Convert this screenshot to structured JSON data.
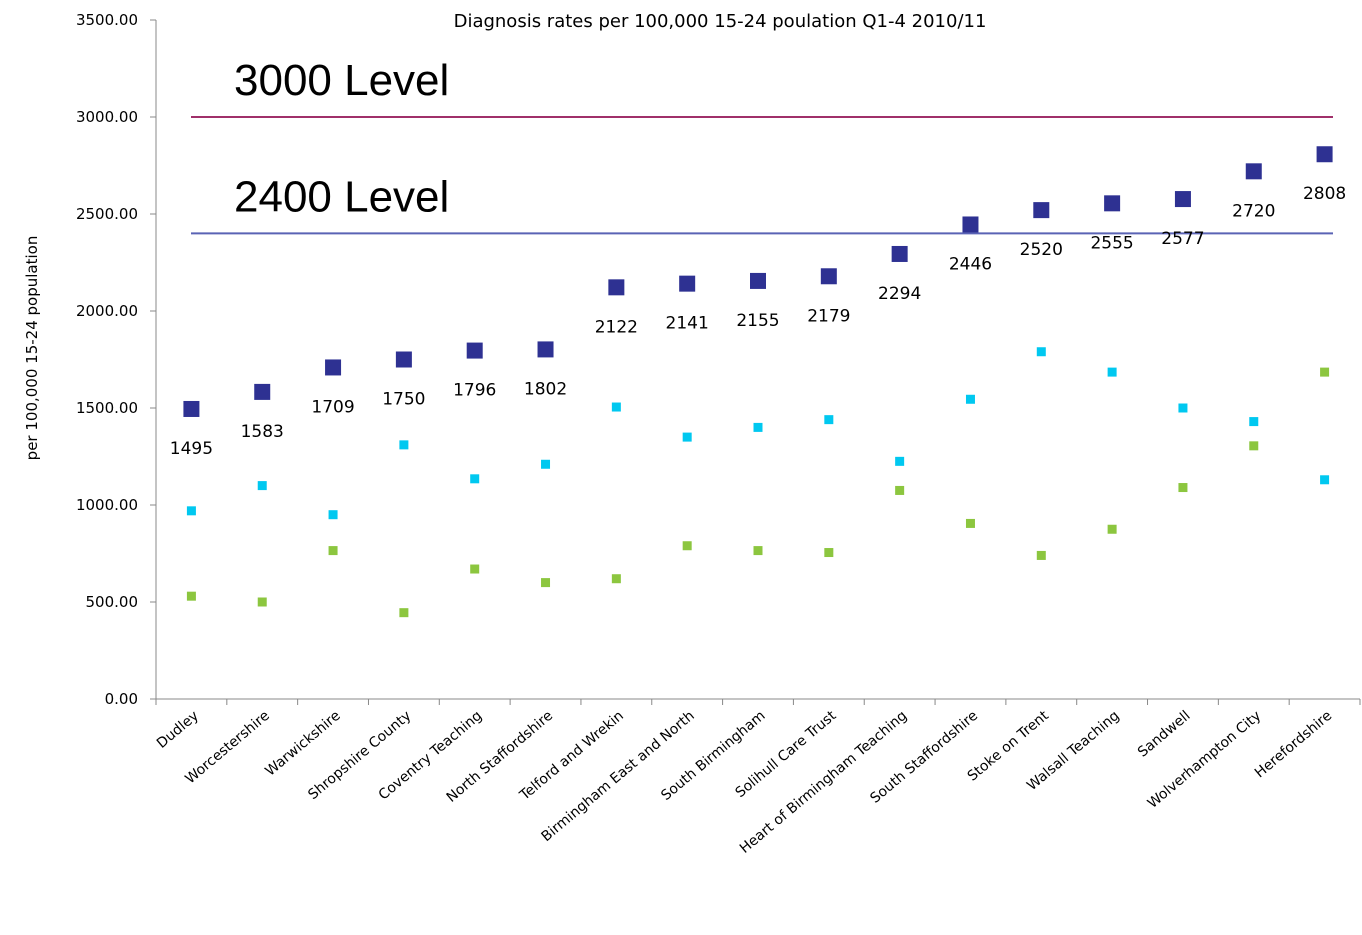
{
  "chart_data": {
    "type": "scatter",
    "title": "Diagnosis rates per 100,000 15-24 poulation Q1-4 2010/11",
    "xlabel": "",
    "ylabel": "per 100,000 15-24 population",
    "ylim": [
      0,
      3500
    ],
    "yticks": [
      "0.00",
      "500.00",
      "1000.00",
      "1500.00",
      "2000.00",
      "2500.00",
      "3000.00",
      "3500.00"
    ],
    "grid": false,
    "categories": [
      "Dudley",
      "Worcestershire",
      "Warwickshire",
      "Shropshire County",
      "Coventry Teaching",
      "North Staffordshire",
      "Telford and Wrekin",
      "Birmingham East and North",
      "South Birmingham",
      "Solihull Care Trust",
      "Heart of Birmingham Teaching",
      "South Staffordshire",
      "Stoke on Trent",
      "Walsall Teaching",
      "Sandwell",
      "Wolverhampton City",
      "Herefordshire"
    ],
    "series": [
      {
        "color": "#2e3192",
        "marker_size": "large",
        "values": [
          1495,
          1583,
          1709,
          1750,
          1796,
          1802,
          2122,
          2141,
          2155,
          2179,
          2294,
          2446,
          2520,
          2555,
          2577,
          2720,
          2808
        ],
        "data_labels": [
          "1495",
          "1583",
          "1709",
          "1750",
          "1796",
          "1802",
          "2122",
          "2141",
          "2155",
          "2179",
          "2294",
          "2446",
          "2520",
          "2555",
          "2577",
          "2720",
          "2808"
        ]
      },
      {
        "color": "#00c8f0",
        "marker_size": "small",
        "values": [
          970,
          1100,
          950,
          1310,
          1135,
          1210,
          1505,
          1350,
          1400,
          1440,
          1225,
          1545,
          1790,
          1685,
          1500,
          1430,
          1130
        ]
      },
      {
        "color": "#8cc63f",
        "marker_size": "small",
        "values": [
          530,
          500,
          765,
          445,
          670,
          600,
          620,
          790,
          765,
          755,
          1075,
          905,
          740,
          875,
          1090,
          1305,
          1685
        ]
      }
    ],
    "reference_lines": [
      {
        "label": "3000 Level",
        "value": 3000,
        "color": "#a0306a"
      },
      {
        "label": "2400 Level",
        "value": 2400,
        "color": "#5a63b5"
      }
    ]
  }
}
